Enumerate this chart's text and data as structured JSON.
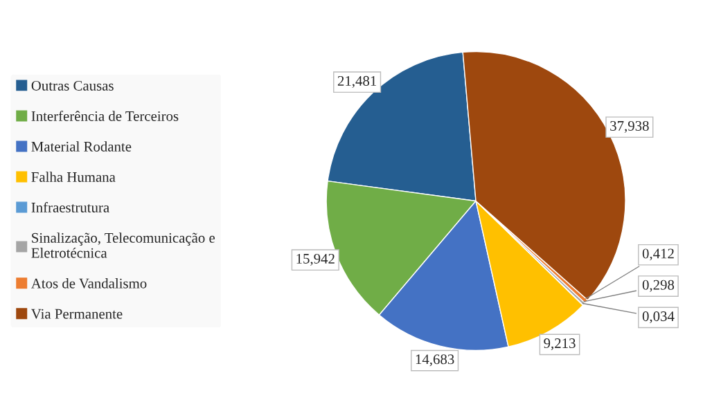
{
  "chart_data": {
    "type": "pie",
    "categories": [
      "Outras Causas",
      "Interferência de Terceiros",
      "Material Rodante",
      "Falha Humana",
      "Infraestrutura",
      "Sinalização, Telecomunicação e Eletrotécnica",
      "Atos de Vandalismo",
      "Via Permanente"
    ],
    "values": [
      21.481,
      15.942,
      14.683,
      9.213,
      0.034,
      0.298,
      0.412,
      37.938
    ],
    "colors": [
      "#255e91",
      "#70ad47",
      "#4472c4",
      "#ffc000",
      "#5b9bd5",
      "#a5a5a5",
      "#ed7d31",
      "#9e480e"
    ],
    "value_labels": [
      "21,481",
      "15,942",
      "14,683",
      "9,213",
      "0,034",
      "0,298",
      "0,412",
      "37,938"
    ],
    "legend": "left"
  }
}
